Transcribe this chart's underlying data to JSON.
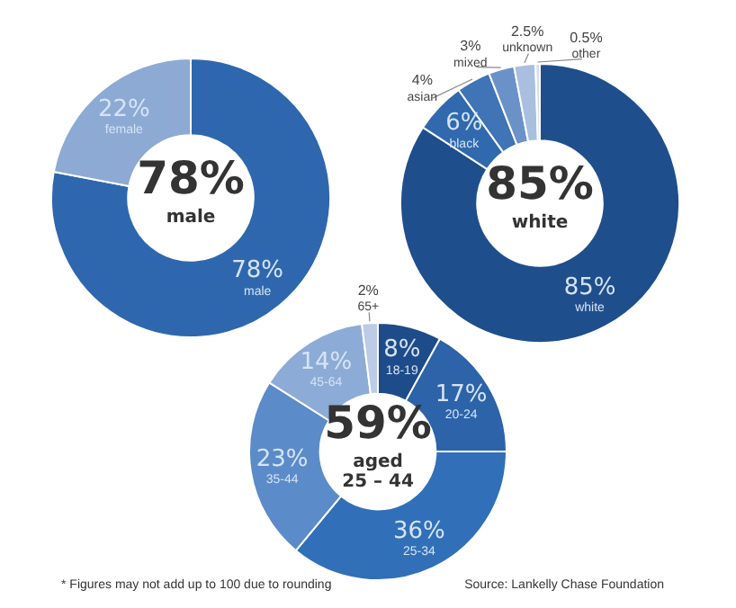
{
  "chart_data": [
    {
      "type": "donut",
      "title": "78%",
      "subtitle": "male",
      "categories": [
        "male",
        "female"
      ],
      "values": [
        78,
        22
      ],
      "value_labels": [
        "78%",
        "22%"
      ],
      "colors": [
        "#2e67ae",
        "#8caad4"
      ]
    },
    {
      "type": "donut",
      "title": "85%",
      "subtitle": "white",
      "categories": [
        "white",
        "black",
        "asian",
        "mixed",
        "unknown",
        "other"
      ],
      "values": [
        85,
        6,
        4,
        3,
        2.5,
        0.5
      ],
      "value_labels": [
        "85%",
        "6%",
        "4%",
        "3%",
        "2.5%",
        "0.5%"
      ],
      "colors": [
        "#1f4e8c",
        "#3069ad",
        "#3f74b6",
        "#6a92c8",
        "#a9bfe0",
        "#d3deef"
      ]
    },
    {
      "type": "donut",
      "title": "59%",
      "subtitle": "aged\n25 – 44",
      "categories": [
        "18-19",
        "20-24",
        "25-34",
        "35-44",
        "45-64",
        "65+"
      ],
      "values": [
        8,
        17,
        36,
        23,
        14,
        2
      ],
      "value_labels": [
        "8%",
        "17%",
        "36%",
        "23%",
        "14%",
        "2%"
      ],
      "colors": [
        "#1e4b89",
        "#2c63a9",
        "#3170b8",
        "#5b8bc8",
        "#8dabd7",
        "#bccbe6"
      ],
      "annotations": [
        "* Figures may not add up to 100 due to rounding",
        "Source: Lankelly Chase Foundation"
      ]
    }
  ]
}
